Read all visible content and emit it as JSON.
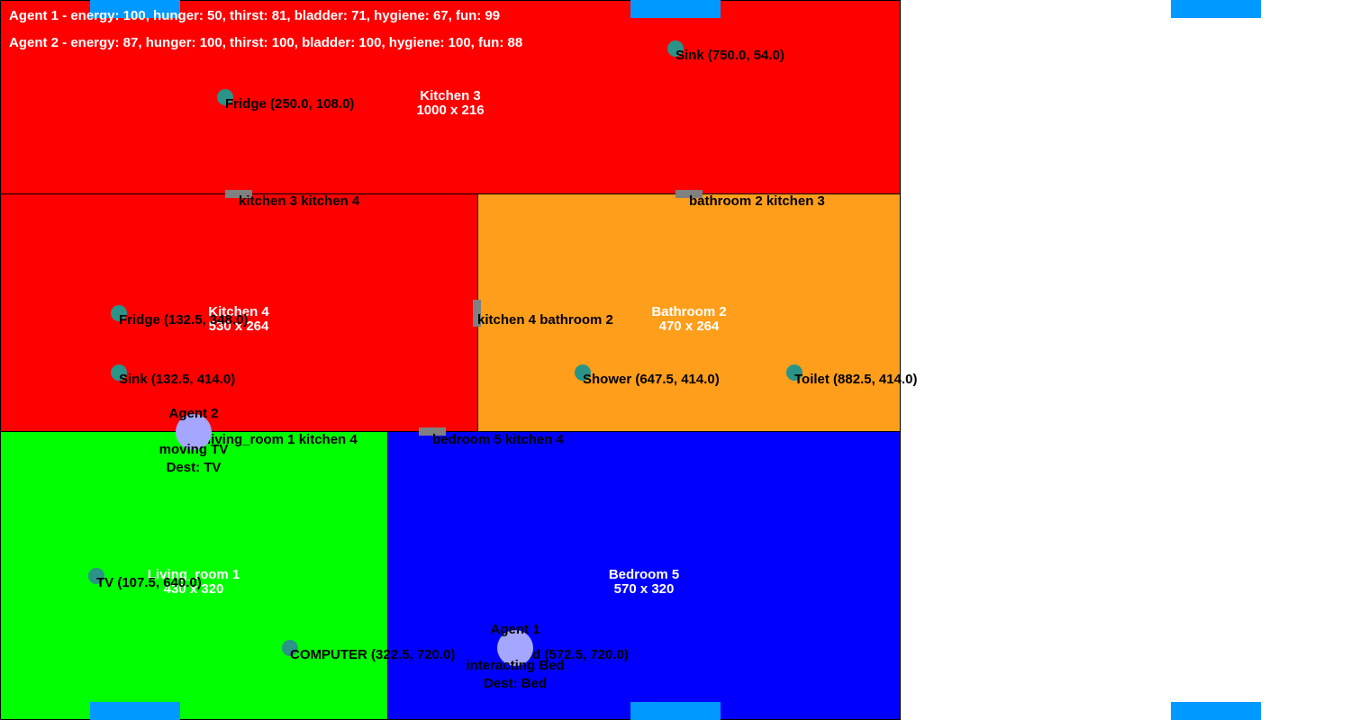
{
  "colors": {
    "kitchen": "#ff0000",
    "bathroom": "#ff9e1b",
    "living_room": "#00ff00",
    "bedroom": "#0000ff",
    "object": "#2a9488",
    "agent": "#a4a6ff",
    "door": "#808080",
    "marker": "#0099ff"
  },
  "status": {
    "agent1": "Agent 1 - energy: 100, hunger: 50, thirst: 81, bladder: 71, hygiene: 67, fun: 99",
    "agent2": "Agent 2 - energy: 87, hunger: 100, thirst: 100, bladder: 100, hygiene: 100, fun: 88"
  },
  "rooms": {
    "kitchen3": {
      "name": "Kitchen 3",
      "size": "1000 x 216"
    },
    "kitchen4": {
      "name": "Kitchen 4",
      "size": "530 x 264"
    },
    "bathroom2": {
      "name": "Bathroom 2",
      "size": "470 x 264"
    },
    "living_room1": {
      "name": "Living_room 1",
      "size": "430 x 320"
    },
    "bedroom5": {
      "name": "Bedroom 5",
      "size": "570 x 320"
    }
  },
  "doors": {
    "k3_k4": "kitchen 3 kitchen 4",
    "b2_k3": "bathroom 2 kitchen 3",
    "k4_b2": "kitchen 4 bathroom 2",
    "lr1_k4": "living_room 1 kitchen 4",
    "b5_k4": "bedroom 5 kitchen 4"
  },
  "objects": {
    "sink_k3": "Sink (750.0, 54.0)",
    "fridge_k3": "Fridge (250.0, 108.0)",
    "fridge_k4": "Fridge (132.5, 348.0)",
    "sink_k4": "Sink (132.5, 414.0)",
    "shower_b2": "Shower (647.5, 414.0)",
    "toilet_b2": "Toilet (882.5, 414.0)",
    "tv_lr1": "TV (107.5, 640.0)",
    "computer_lr1": "COMPUTER (322.5, 720.0)",
    "bed_b5": "Bed (572.5, 720.0)"
  },
  "agents": {
    "agent1": {
      "name": "Agent 1",
      "action": "interacting Bed",
      "dest": "Dest: Bed"
    },
    "agent2": {
      "name": "Agent 2",
      "action": "moving TV",
      "dest": "Dest: TV"
    }
  }
}
